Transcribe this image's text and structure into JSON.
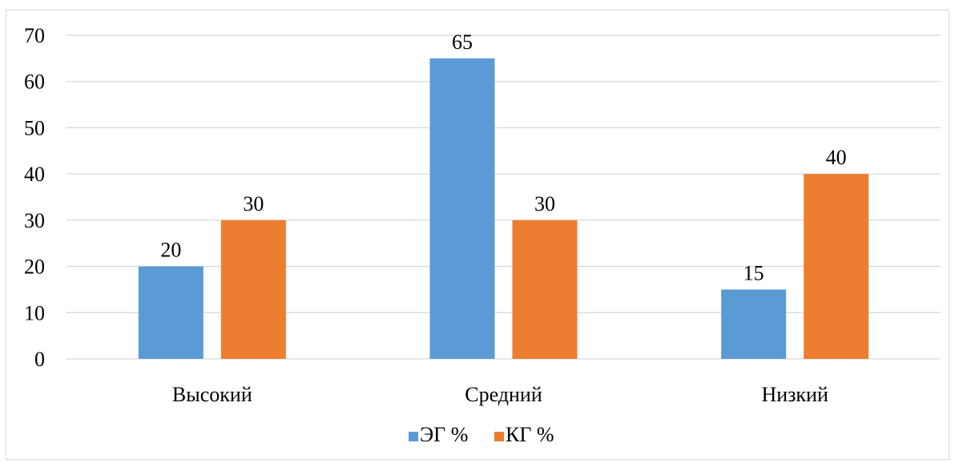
{
  "chart_data": {
    "type": "bar",
    "categories": [
      "Высокий",
      "Средний",
      "Низкий"
    ],
    "series": [
      {
        "name": "ЭГ %",
        "values": [
          20,
          65,
          15
        ],
        "color": "#5B9BD5"
      },
      {
        "name": "КГ %",
        "values": [
          30,
          30,
          40
        ],
        "color": "#ED7D31"
      }
    ],
    "ylim": [
      0,
      70
    ],
    "yticks": [
      0,
      10,
      20,
      30,
      40,
      50,
      60,
      70
    ],
    "title": "",
    "xlabel": "",
    "ylabel": "",
    "grid": true,
    "gridColor": "#d9d9d9",
    "legend_position": "bottom",
    "data_labels": true
  }
}
